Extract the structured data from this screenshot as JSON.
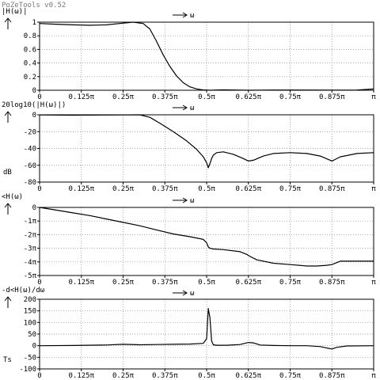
{
  "app_title": "PoZeTools v0.52",
  "x_axis": {
    "arrow_label": "ω",
    "ticks": [
      {
        "v": 0,
        "label": "0"
      },
      {
        "v": 0.125,
        "label": "0.125π"
      },
      {
        "v": 0.25,
        "label": "0.25π"
      },
      {
        "v": 0.375,
        "label": "0.375π"
      },
      {
        "v": 0.5,
        "label": "0.5π"
      },
      {
        "v": 0.625,
        "label": "0.625π"
      },
      {
        "v": 0.75,
        "label": "0.75π"
      },
      {
        "v": 0.875,
        "label": "0.875π"
      },
      {
        "v": 1,
        "label": "π"
      }
    ]
  },
  "chart_data": [
    {
      "type": "line",
      "title": "|H(ω)|",
      "ylabel": "",
      "xlim": [
        0,
        1
      ],
      "ylim": [
        0,
        1
      ],
      "yticks": [
        {
          "v": 1,
          "label": "1"
        },
        {
          "v": 0.8,
          "label": "0.8"
        },
        {
          "v": 0.6,
          "label": "0.6"
        },
        {
          "v": 0.4,
          "label": "0.4"
        },
        {
          "v": 0.2,
          "label": "0.2"
        },
        {
          "v": 0,
          "label": "0"
        }
      ],
      "x": [
        0,
        0.05,
        0.1,
        0.15,
        0.2,
        0.24,
        0.28,
        0.31,
        0.33,
        0.35,
        0.37,
        0.39,
        0.41,
        0.43,
        0.45,
        0.47,
        0.49,
        0.51,
        0.55,
        0.625,
        0.7,
        0.75,
        0.875,
        0.95,
        1
      ],
      "y": [
        0.98,
        0.97,
        0.96,
        0.955,
        0.96,
        0.98,
        1.0,
        0.98,
        0.9,
        0.72,
        0.52,
        0.35,
        0.21,
        0.11,
        0.05,
        0.02,
        0.005,
        0.0,
        0.006,
        0.0,
        0.004,
        0.003,
        0.002,
        0.003,
        0.02
      ]
    },
    {
      "type": "line",
      "title": "20log10(|H(ω)|)",
      "ylabel": "dB",
      "xlim": [
        0,
        1
      ],
      "ylim": [
        -80,
        0
      ],
      "yticks": [
        {
          "v": 0,
          "label": "0"
        },
        {
          "v": -20,
          "label": "-20"
        },
        {
          "v": -40,
          "label": "-40"
        },
        {
          "v": -60,
          "label": "-60"
        },
        {
          "v": -80,
          "label": "-80"
        }
      ],
      "x": [
        0,
        0.1,
        0.2,
        0.3,
        0.33,
        0.36,
        0.4,
        0.44,
        0.47,
        0.49,
        0.5,
        0.505,
        0.51,
        0.515,
        0.52,
        0.53,
        0.55,
        0.58,
        0.61,
        0.625,
        0.64,
        0.67,
        0.7,
        0.75,
        0.8,
        0.84,
        0.87,
        0.875,
        0.88,
        0.9,
        0.95,
        1
      ],
      "y": [
        -0.2,
        -0.5,
        -0.3,
        0,
        -3,
        -10,
        -20,
        -31,
        -41,
        -50,
        -57,
        -63,
        -58,
        -52,
        -48,
        -45,
        -44,
        -47,
        -52,
        -55,
        -54,
        -49,
        -46,
        -45,
        -46,
        -49,
        -54,
        -55,
        -54,
        -50,
        -46,
        -45
      ]
    },
    {
      "type": "line",
      "title": "<H(ω)",
      "ylabel": "",
      "xlim": [
        0,
        1
      ],
      "ylim": [
        -5,
        0
      ],
      "yticks": [
        {
          "v": 0,
          "label": "0"
        },
        {
          "v": -1,
          "label": "-1π"
        },
        {
          "v": -2,
          "label": "-2π"
        },
        {
          "v": -3,
          "label": "-3π"
        },
        {
          "v": -4,
          "label": "-4π"
        },
        {
          "v": -5,
          "label": "-5π"
        }
      ],
      "x": [
        0,
        0.05,
        0.1,
        0.15,
        0.2,
        0.25,
        0.3,
        0.35,
        0.4,
        0.45,
        0.49,
        0.5,
        0.505,
        0.51,
        0.52,
        0.55,
        0.6,
        0.62,
        0.63,
        0.65,
        0.7,
        0.75,
        0.8,
        0.83,
        0.86,
        0.875,
        0.9,
        1
      ],
      "y": [
        0,
        -0.2,
        -0.4,
        -0.6,
        -0.85,
        -1.1,
        -1.35,
        -1.65,
        -1.95,
        -2.15,
        -2.35,
        -2.6,
        -2.9,
        -3.0,
        -3.05,
        -3.1,
        -3.25,
        -3.45,
        -3.6,
        -3.85,
        -4.1,
        -4.2,
        -4.3,
        -4.3,
        -4.25,
        -4.2,
        -3.95,
        -3.95
      ]
    },
    {
      "type": "line",
      "title": "-d<H(ω)/dω",
      "ylabel": "Ts",
      "xlim": [
        0,
        1
      ],
      "ylim": [
        -100,
        200
      ],
      "yticks": [
        {
          "v": 200,
          "label": "200"
        },
        {
          "v": 150,
          "label": "150"
        },
        {
          "v": 100,
          "label": "100"
        },
        {
          "v": 50,
          "label": "50"
        },
        {
          "v": 0,
          "label": "0"
        },
        {
          "v": -50,
          "label": "-50"
        },
        {
          "v": -100,
          "label": "-100"
        }
      ],
      "x": [
        0,
        0.1,
        0.2,
        0.25,
        0.3,
        0.35,
        0.4,
        0.45,
        0.49,
        0.5,
        0.505,
        0.51,
        0.515,
        0.52,
        0.53,
        0.56,
        0.6,
        0.625,
        0.64,
        0.66,
        0.7,
        0.75,
        0.8,
        0.84,
        0.86,
        0.875,
        0.89,
        0.92,
        1
      ],
      "y": [
        0,
        1,
        3,
        6,
        4,
        5,
        6,
        7,
        10,
        30,
        160,
        120,
        20,
        4,
        2,
        2,
        5,
        14,
        12,
        3,
        1,
        0,
        0,
        -4,
        -10,
        -14,
        -7,
        -1,
        0
      ]
    }
  ]
}
